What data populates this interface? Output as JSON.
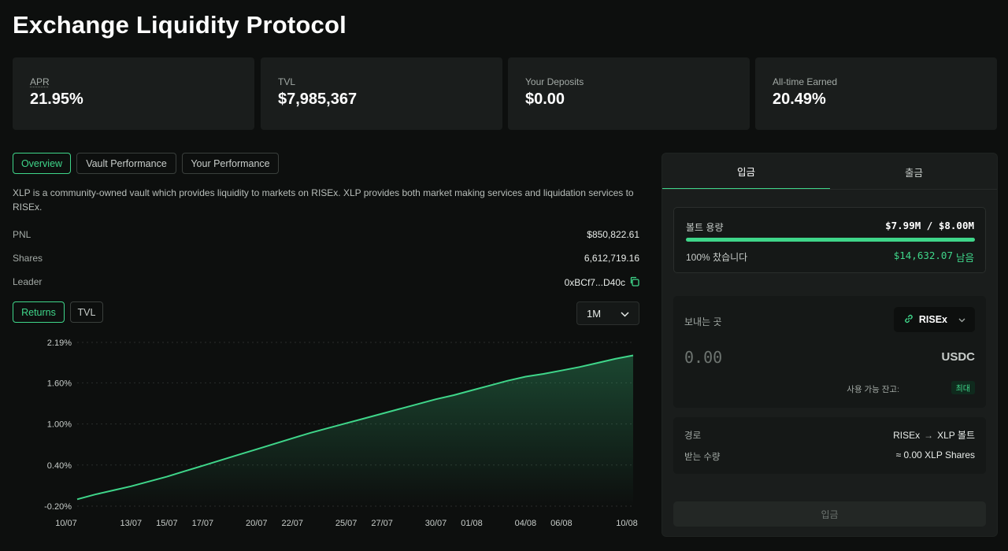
{
  "page": {
    "title": "Exchange Liquidity Protocol"
  },
  "stats": [
    {
      "label": "APR",
      "value": "21.95%"
    },
    {
      "label": "TVL",
      "value": "$7,985,367"
    },
    {
      "label": "Your Deposits",
      "value": "$0.00"
    },
    {
      "label": "All-time Earned",
      "value": "20.49%"
    }
  ],
  "tabs": [
    "Overview",
    "Vault Performance",
    "Your Performance"
  ],
  "description": "XLP is a community-owned vault which provides liquidity to markets on RISEx. XLP provides both market making services and liquidation services to RISEx.",
  "details": {
    "pnl_label": "PNL",
    "pnl_value": "$850,822.61",
    "shares_label": "Shares",
    "shares_value": "6,612,719.16",
    "leader_label": "Leader",
    "leader_value": "0xBCf7...D40c"
  },
  "chart_toggle": [
    "Returns",
    "TVL"
  ],
  "range": {
    "selected": "1M"
  },
  "colors": {
    "accent": "#3fd68a",
    "panel": "#1a1d1c",
    "background": "#0d0f0e"
  },
  "chart_data": {
    "type": "area",
    "x": [
      "10/07",
      "11/07",
      "12/07",
      "13/07",
      "14/07",
      "15/07",
      "16/07",
      "17/07",
      "18/07",
      "19/07",
      "20/07",
      "21/07",
      "22/07",
      "23/07",
      "24/07",
      "25/07",
      "26/07",
      "27/07",
      "28/07",
      "29/07",
      "30/07",
      "31/07",
      "01/08",
      "02/08",
      "03/08",
      "04/08",
      "05/08",
      "06/08",
      "07/08",
      "08/08",
      "09/08",
      "10/08"
    ],
    "values": [
      -0.1,
      -0.03,
      0.03,
      0.09,
      0.16,
      0.23,
      0.31,
      0.39,
      0.47,
      0.55,
      0.63,
      0.71,
      0.79,
      0.87,
      0.94,
      1.01,
      1.08,
      1.15,
      1.22,
      1.29,
      1.36,
      1.42,
      1.49,
      1.56,
      1.63,
      1.69,
      1.73,
      1.78,
      1.83,
      1.89,
      1.95,
      2.0
    ],
    "x_tick_labels": [
      "10/07",
      "13/07",
      "15/07",
      "17/07",
      "20/07",
      "22/07",
      "25/07",
      "27/07",
      "30/07",
      "01/08",
      "04/08",
      "06/08",
      "10/08"
    ],
    "y_tick_labels": [
      "2.19%",
      "1.60%",
      "1.00%",
      "0.40%",
      "-0.20%"
    ],
    "y_ticks": [
      2.19,
      1.6,
      1.0,
      0.4,
      -0.2
    ],
    "ylim": [
      -0.2,
      2.19
    ],
    "grid": true
  },
  "panel": {
    "tab_deposit": "입금",
    "tab_withdraw": "출금",
    "capacity_label": "볼트 용량",
    "capacity_value": "$7.99M / $8.00M",
    "capacity_fill_pct": 99.9,
    "filled_label": "100% 찼습니다",
    "remaining_amount": "$14,632.07",
    "remaining_suffix": "남음",
    "from_label": "보내는 곳",
    "from_source": "RISEx",
    "amount_placeholder": "0.00",
    "token": "USDC",
    "balance_label": "사용 가능 잔고:",
    "max_label": "최대",
    "route_label": "경로",
    "route_from": "RISEx",
    "route_to": "XLP 볼트",
    "receive_label": "받는 수량",
    "receive_value": "≈ 0.00 XLP Shares",
    "submit_label": "입금"
  }
}
